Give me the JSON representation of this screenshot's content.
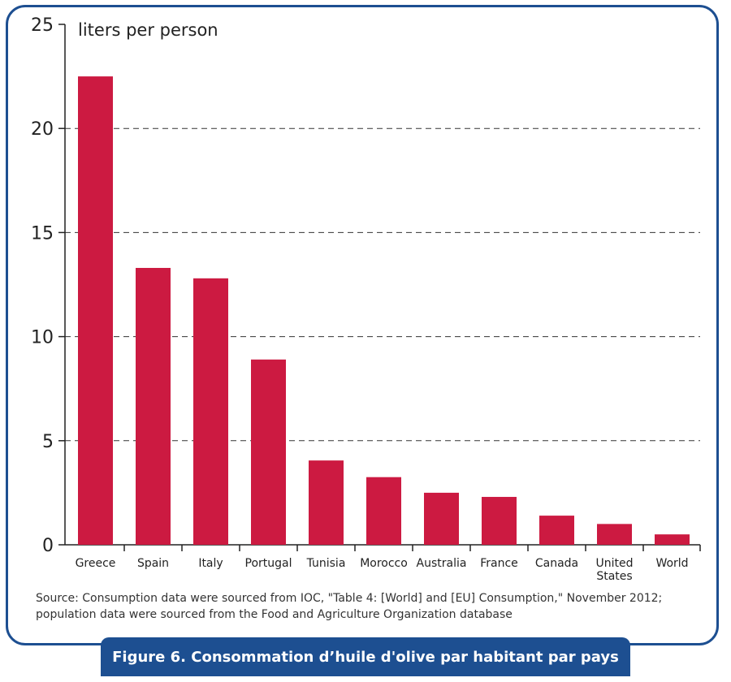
{
  "chart_data": {
    "type": "bar",
    "ylabel": "liters per person",
    "categories": [
      "Greece",
      "Spain",
      "Italy",
      "Portugal",
      "Tunisia",
      "Morocco",
      "Australia",
      "France",
      "Canada",
      "United States",
      "World"
    ],
    "category_lines": [
      [
        "Greece"
      ],
      [
        "Spain"
      ],
      [
        "Italy"
      ],
      [
        "Portugal"
      ],
      [
        "Tunisia"
      ],
      [
        "Morocco"
      ],
      [
        "Australia"
      ],
      [
        "France"
      ],
      [
        "Canada"
      ],
      [
        "United",
        "States"
      ],
      [
        "World"
      ]
    ],
    "values": [
      22.5,
      13.3,
      12.8,
      8.9,
      4.05,
      3.25,
      2.5,
      2.3,
      1.4,
      1.0,
      0.5
    ],
    "ylim": [
      0,
      25
    ],
    "yticks": [
      0,
      5,
      10,
      15,
      20,
      25
    ],
    "grid": true,
    "bar_color": "#cc1a41"
  },
  "source_note": "Source: Consumption data were sourced from IOC, \"Table 4: [World] and [EU] Consumption,\" November 2012; population data were sourced from the Food and Agriculture Organization database",
  "caption": "Figure 6. Consommation d’huile d'olive par habitant par pays",
  "colors": {
    "frame": "#1d4f91",
    "bar": "#cc1a41"
  }
}
